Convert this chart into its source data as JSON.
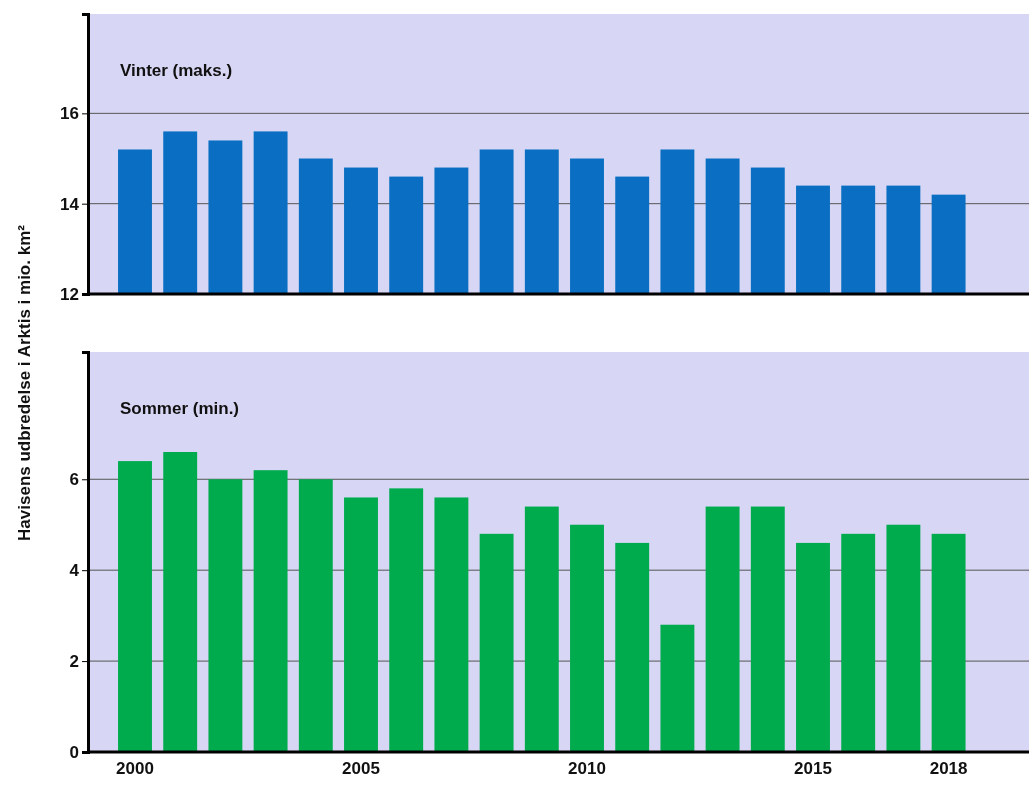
{
  "chart_data": [
    {
      "type": "bar",
      "title": "Vinter (maks.)",
      "ylabel": "Havisens udbredelse i Arktis i mio. km²",
      "categories": [
        null,
        null,
        null,
        null,
        null,
        null,
        null,
        null,
        null,
        null,
        null,
        null,
        null,
        null,
        null,
        null,
        null,
        null,
        null
      ],
      "values": [
        15.2,
        15.6,
        15.4,
        15.6,
        15.0,
        14.8,
        14.6,
        14.8,
        15.2,
        15.2,
        15.0,
        14.6,
        15.2,
        15.0,
        14.8,
        14.4,
        14.4,
        14.4,
        14.2
      ],
      "color": "#0a6fc2",
      "ylim": [
        12,
        18.2
      ],
      "yticks": [
        12,
        14,
        16
      ],
      "grid": "y",
      "tick_labels": "y"
    },
    {
      "type": "bar",
      "title": "Sommer (min.)",
      "categories": [
        "2000",
        null,
        null,
        null,
        null,
        "2005",
        null,
        null,
        null,
        null,
        "2010",
        null,
        null,
        null,
        null,
        "2015",
        null,
        null,
        "2018"
      ],
      "values": [
        6.4,
        6.6,
        6.0,
        6.2,
        6.0,
        5.6,
        5.8,
        5.6,
        4.8,
        5.4,
        5.0,
        4.6,
        2.8,
        5.4,
        5.4,
        4.6,
        4.8,
        5.0,
        4.8
      ],
      "color": "#00ab4e",
      "ylim": [
        0,
        8.8
      ],
      "yticks": [
        0,
        2,
        4,
        6
      ],
      "grid": "y"
    }
  ]
}
